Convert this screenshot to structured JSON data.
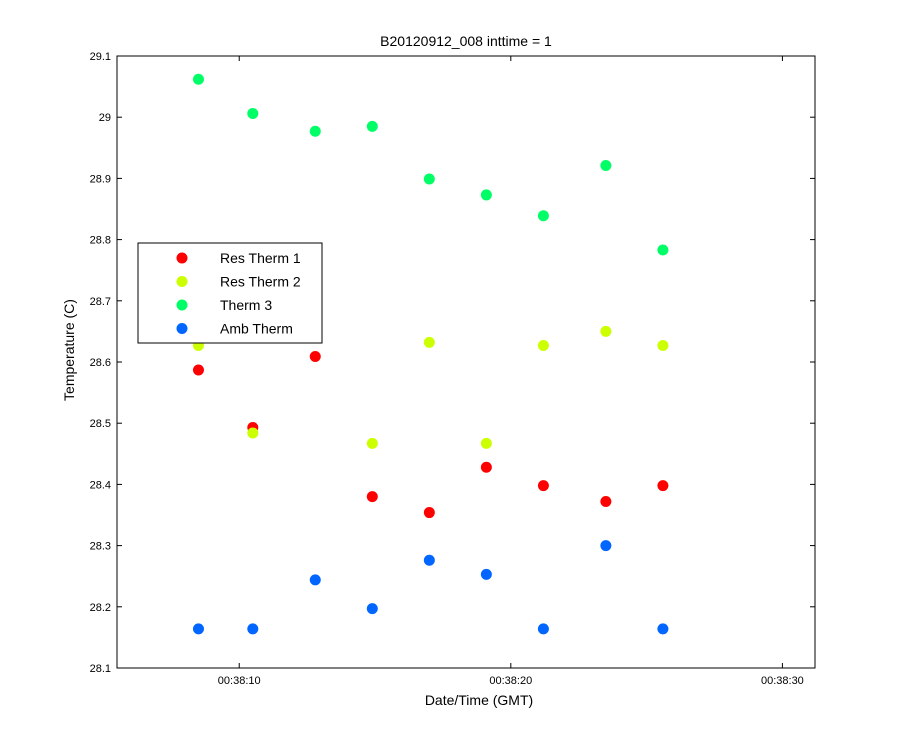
{
  "chart_data": {
    "type": "scatter",
    "title": "B20120912_008 inttime = 1",
    "xlabel": "Date/Time (GMT)",
    "ylabel": "Temperature (C)",
    "xlim": [
      "00:38:05.5",
      "00:38:31.2"
    ],
    "ylim": [
      28.1,
      29.1
    ],
    "x_ticks": [
      "00:38:10",
      "00:38:20",
      "00:38:30"
    ],
    "y_ticks": [
      "28.1",
      "28.2",
      "28.3",
      "28.4",
      "28.5",
      "28.6",
      "28.7",
      "28.8",
      "28.9",
      "29",
      "29.1"
    ],
    "grid": false,
    "legend_position": "middle-left",
    "x": [
      "00:38:08.5",
      "00:38:10.5",
      "00:38:12.8",
      "00:38:14.9",
      "00:38:17.0",
      "00:38:19.1",
      "00:38:21.2",
      "00:38:23.5",
      "00:38:25.6"
    ],
    "series": [
      {
        "name": "Res Therm 1",
        "color": "#ff0000",
        "values": [
          28.587,
          28.493,
          28.609,
          28.38,
          28.354,
          28.428,
          28.398,
          28.372,
          28.398
        ]
      },
      {
        "name": "Res Therm 2",
        "color": "#ccff00",
        "values": [
          28.627,
          28.484,
          28.647,
          28.467,
          28.632,
          28.467,
          28.627,
          28.65,
          28.627
        ]
      },
      {
        "name": "Therm 3",
        "color": "#00ff66",
        "values": [
          29.062,
          29.006,
          28.977,
          28.985,
          28.899,
          28.873,
          28.839,
          28.921,
          28.783
        ]
      },
      {
        "name": "Amb Therm",
        "color": "#0066ff",
        "values": [
          28.164,
          28.164,
          28.244,
          28.197,
          28.276,
          28.253,
          28.164,
          28.3,
          28.164
        ]
      }
    ]
  }
}
